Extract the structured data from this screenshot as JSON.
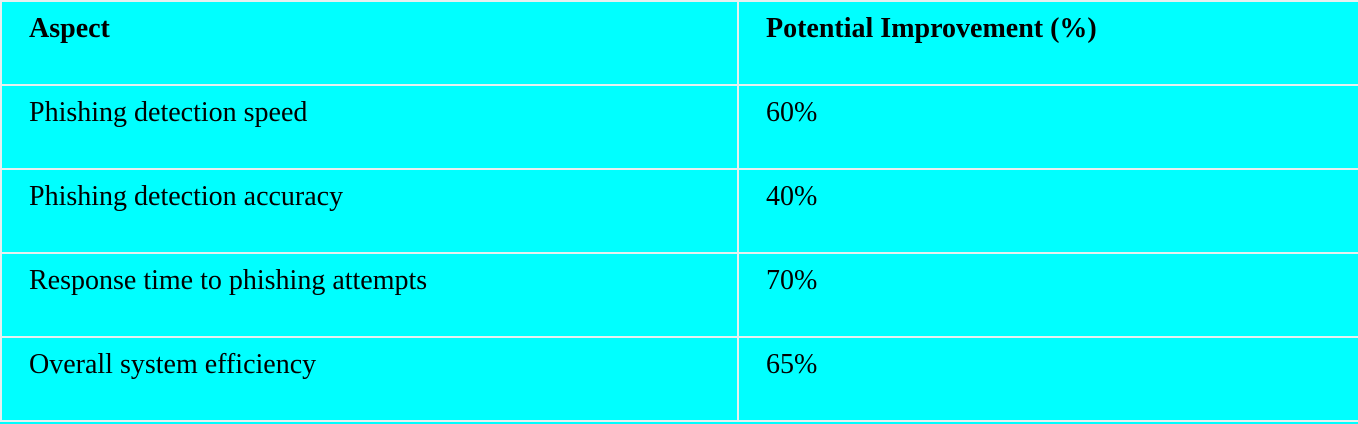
{
  "table": {
    "headers": [
      "Aspect",
      "Potential Improvement (%)"
    ],
    "rows": [
      [
        "Phishing detection speed",
        "60%"
      ],
      [
        "Phishing detection accuracy",
        "40%"
      ],
      [
        "Response time to phishing attempts",
        "70%"
      ],
      [
        "Overall system efficiency",
        "65%"
      ]
    ]
  },
  "colors": {
    "cell_background": "#00ffff",
    "grid_line": "#e6f0f0",
    "text": "#000000"
  }
}
